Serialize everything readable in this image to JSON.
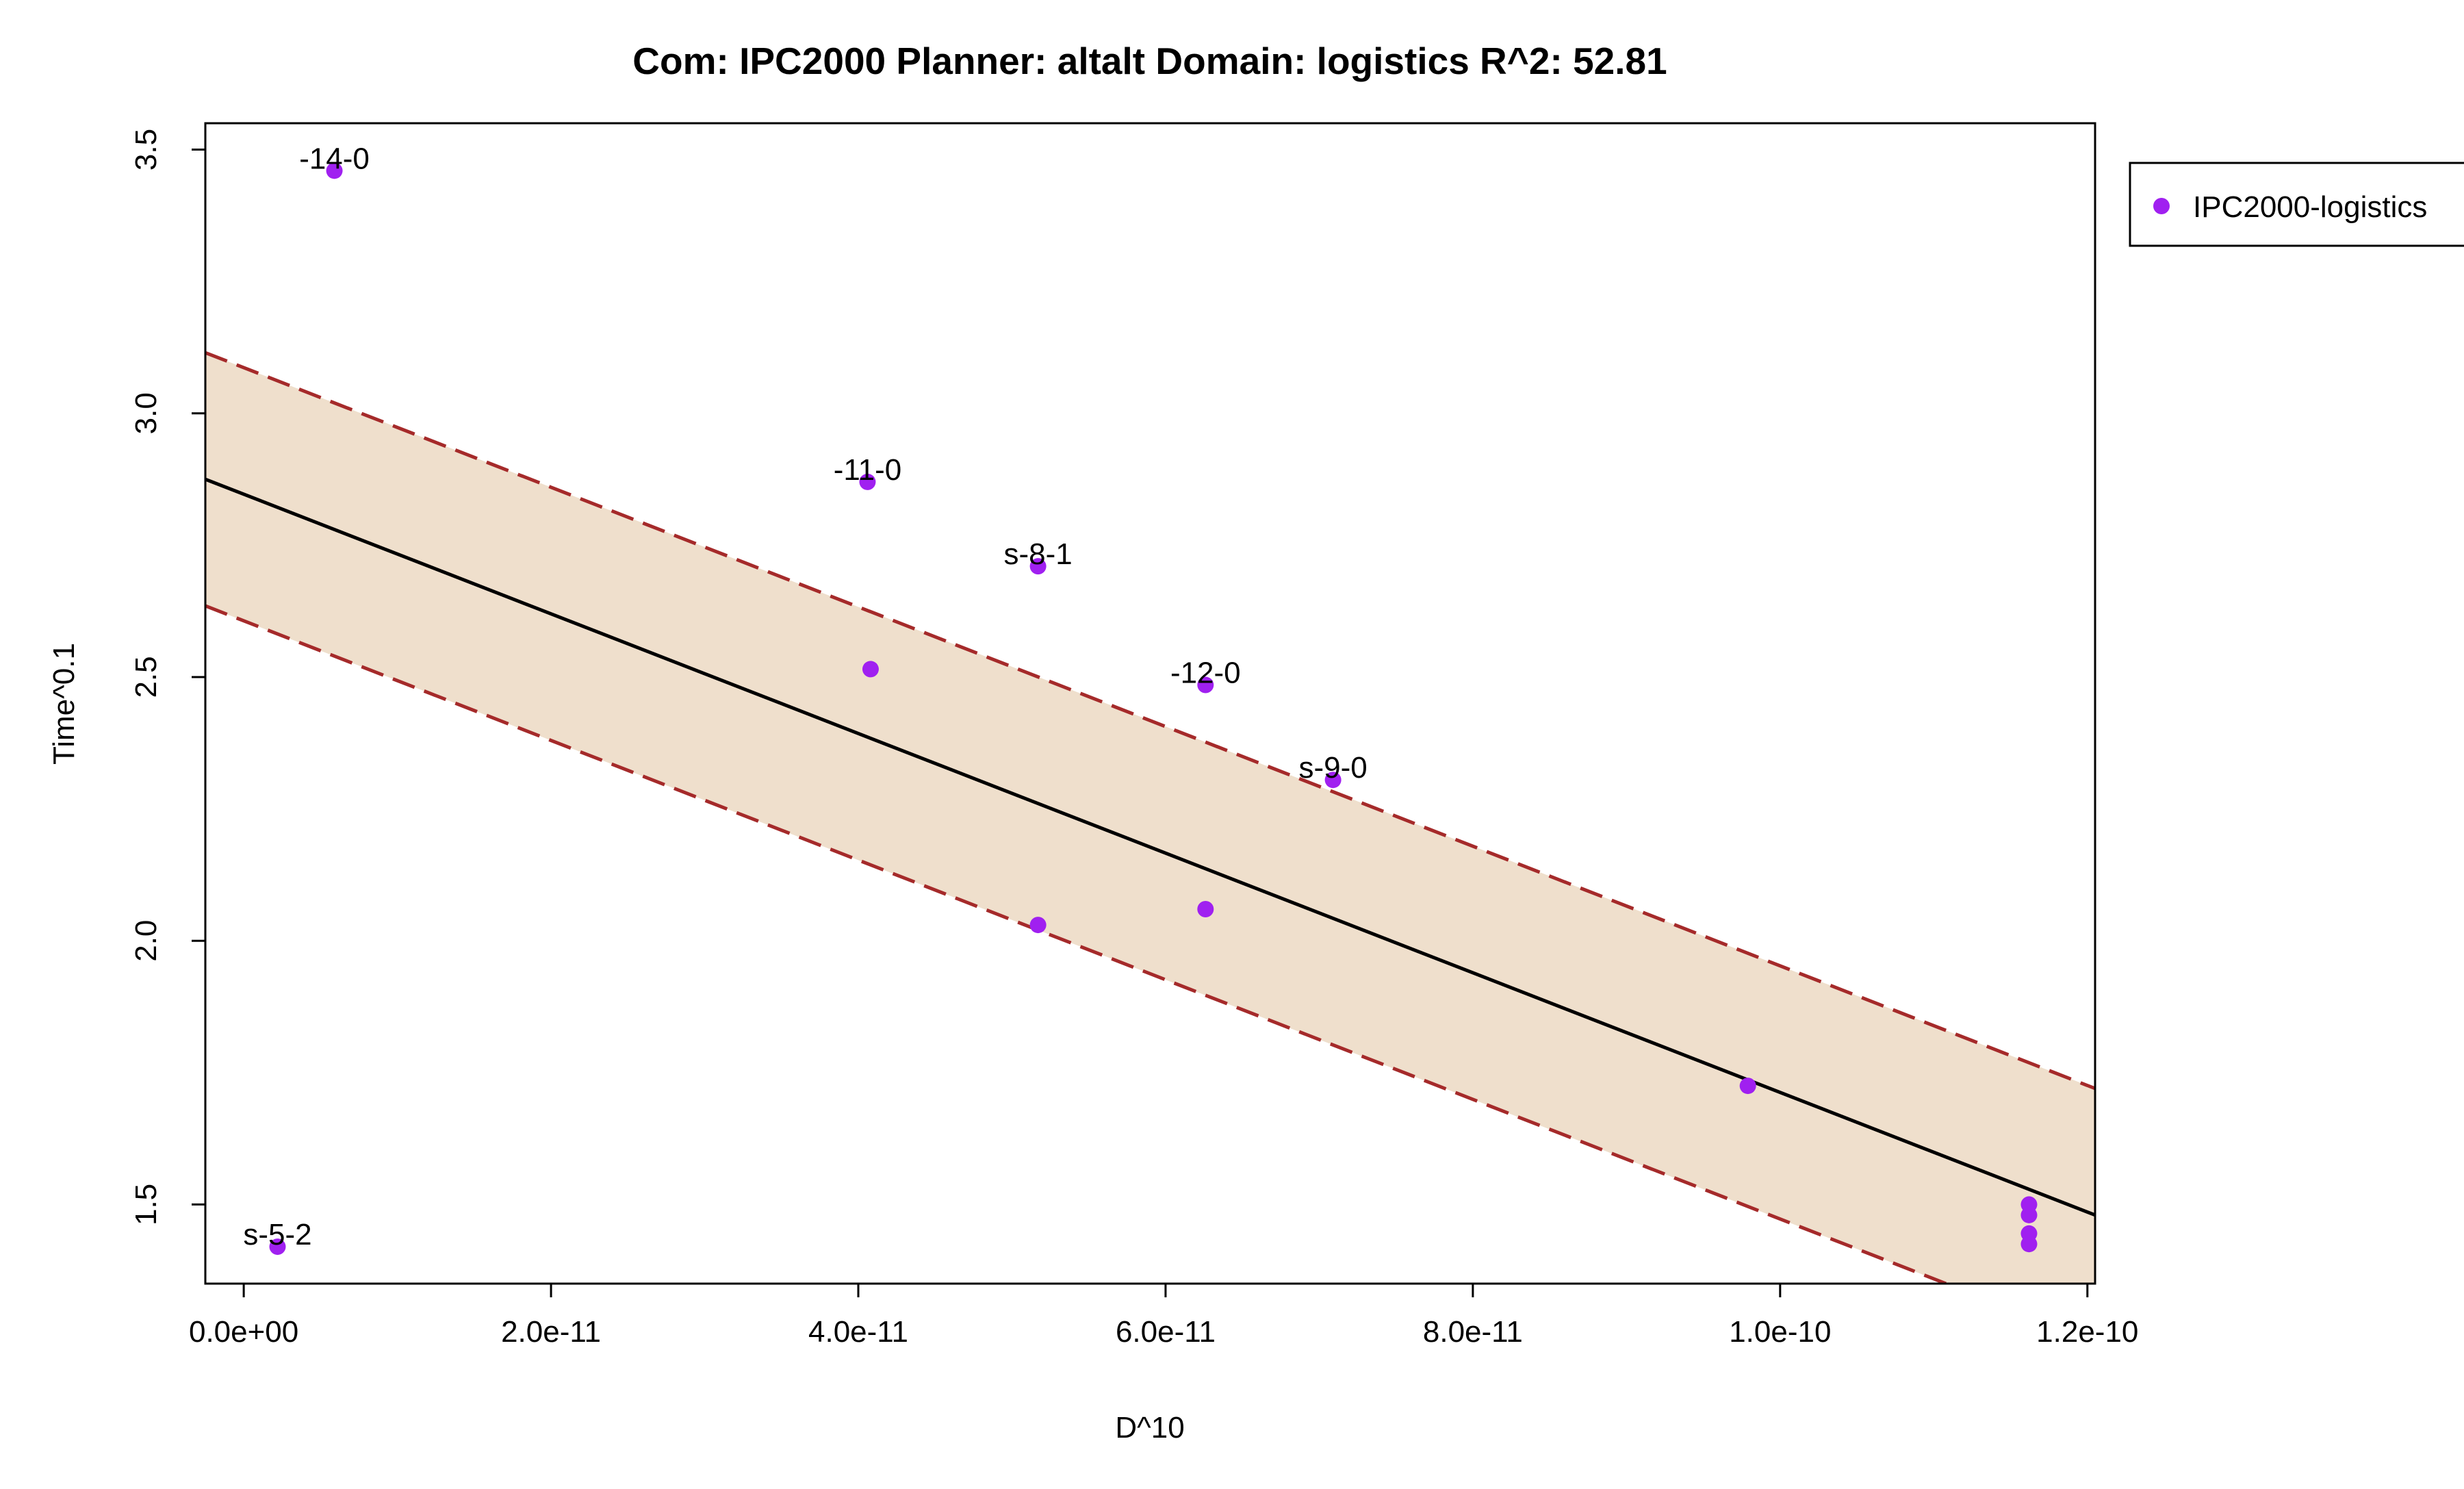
{
  "chart_data": {
    "type": "scatter",
    "title": "Com: IPC2000 Planner: altalt Domain: logistics R^2: 52.81",
    "xlabel": "D^10",
    "ylabel": "Time^0.1",
    "xlim": [
      -2.5e-12,
      1.205e-10
    ],
    "ylim": [
      1.35,
      3.55
    ],
    "x_ticks": [
      0,
      2e-11,
      4e-11,
      6e-11,
      8e-11,
      1e-10,
      1.2e-10
    ],
    "x_tick_labels": [
      "0.0e+00",
      "2.0e-11",
      "4.0e-11",
      "6.0e-11",
      "8.0e-11",
      "1.0e-10",
      "1.2e-10"
    ],
    "y_ticks": [
      1.5,
      2.0,
      2.5,
      3.0,
      3.5
    ],
    "y_tick_labels": [
      "1.5",
      "2.0",
      "2.5",
      "3.0",
      "3.5"
    ],
    "grid": false,
    "legend_position": "outside-top-right",
    "series": [
      {
        "name": "IPC2000-logistics",
        "color": "#a020f0",
        "points": [
          {
            "x": 2.2e-12,
            "y": 1.42,
            "label": "s-5-2"
          },
          {
            "x": 5.9e-12,
            "y": 3.46,
            "label": "-14-0"
          },
          {
            "x": 4.06e-11,
            "y": 2.87,
            "label": "-11-0"
          },
          {
            "x": 4.08e-11,
            "y": 2.515,
            "label": ""
          },
          {
            "x": 5.17e-11,
            "y": 2.71,
            "label": "s-8-1"
          },
          {
            "x": 5.17e-11,
            "y": 2.03,
            "label": ""
          },
          {
            "x": 6.26e-11,
            "y": 2.485,
            "label": "-12-0"
          },
          {
            "x": 6.26e-11,
            "y": 2.06,
            "label": ""
          },
          {
            "x": 7.09e-11,
            "y": 2.305,
            "label": "s-9-0"
          },
          {
            "x": 9.79e-11,
            "y": 1.725,
            "label": ""
          },
          {
            "x": 1.162e-10,
            "y": 1.5,
            "label": ""
          },
          {
            "x": 1.162e-10,
            "y": 1.48,
            "label": ""
          },
          {
            "x": 1.162e-10,
            "y": 1.445,
            "label": ""
          },
          {
            "x": 1.162e-10,
            "y": 1.425,
            "label": ""
          }
        ]
      }
    ],
    "fit_line": {
      "x": [
        -2.5e-12,
        1.205e-10
      ],
      "y": [
        2.875,
        1.48
      ],
      "color": "#000000"
    },
    "prediction_band": {
      "upper": {
        "x": [
          -2.5e-12,
          1.205e-10
        ],
        "y": [
          3.115,
          1.72
        ]
      },
      "lower": {
        "x": [
          -2.5e-12,
          1.205e-10
        ],
        "y": [
          2.635,
          1.24
        ]
      },
      "fill_color": "#efdfcc",
      "line_color": "#a52a2a"
    }
  }
}
